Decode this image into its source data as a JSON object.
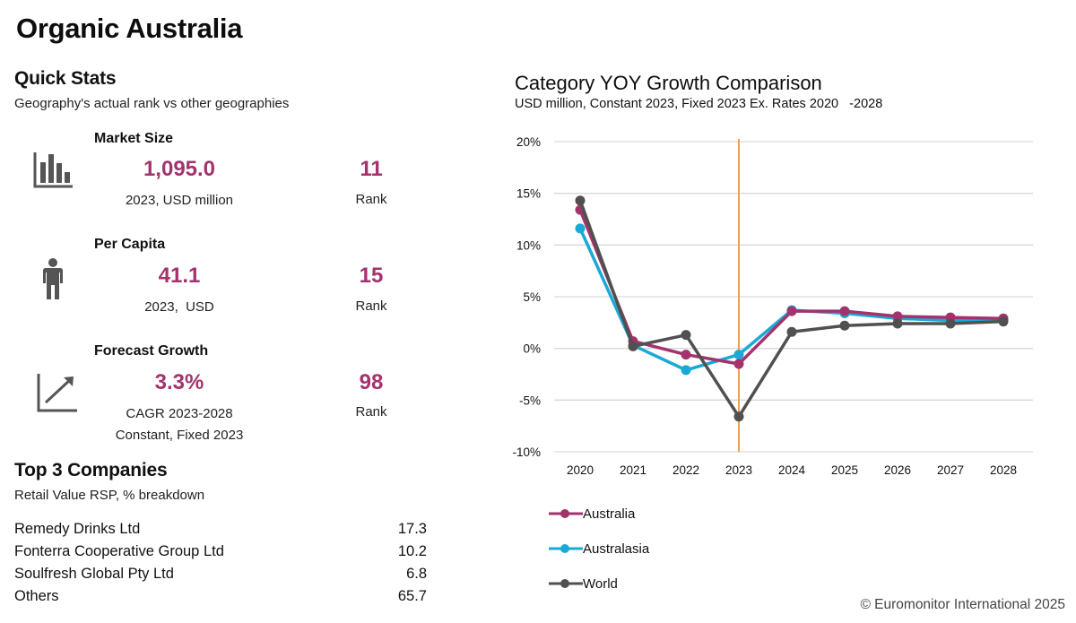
{
  "page": {
    "title": "Organic Australia",
    "copyright": "© Euromonitor International 2025"
  },
  "quick_stats": {
    "title": "Quick Stats",
    "subtitle": "Geography's actual rank vs other geographies",
    "items": [
      {
        "label": "Market Size",
        "icon": "bar-chart-icon",
        "value": "1,095.0",
        "note": "2023, USD million",
        "note2": "",
        "rank": "11",
        "rank_label": "Rank"
      },
      {
        "label": "Per Capita",
        "icon": "person-icon",
        "value": "41.1",
        "note": "2023,  USD",
        "note2": "",
        "rank": "15",
        "rank_label": "Rank"
      },
      {
        "label": "Forecast Growth",
        "icon": "growth-arrow-icon",
        "value": "3.3%",
        "note": "CAGR 2023-2028",
        "note2": "Constant, Fixed 2023",
        "rank": "98",
        "rank_label": "Rank"
      }
    ]
  },
  "top_companies": {
    "title": "Top 3 Companies",
    "subtitle": "Retail Value RSP, % breakdown",
    "rows": [
      {
        "name": "Remedy Drinks Ltd",
        "value": "17.3"
      },
      {
        "name": "Fonterra Cooperative Group Ltd",
        "value": "10.2"
      },
      {
        "name": "Soulfresh Global Pty Ltd",
        "value": "6.8"
      },
      {
        "name": "Others",
        "value": "65.7"
      }
    ]
  },
  "colors": {
    "accent": "#a3336d",
    "australia": "#a3336d",
    "australasia": "#1aa9d6",
    "world": "#505050",
    "marker_line": "#f0a050",
    "grid": "#d9d9d9",
    "icon": "#555555"
  },
  "chart_data": {
    "type": "line",
    "title": "Category YOY Growth Comparison",
    "subtitle": "USD million, Constant 2023, Fixed 2023 Ex. Rates 2020   -2028",
    "xlabel": "",
    "ylabel": "",
    "x": [
      "2020",
      "2021",
      "2022",
      "2023",
      "2024",
      "2025",
      "2026",
      "2027",
      "2028"
    ],
    "ylim": [
      -10,
      20
    ],
    "yticks": [
      20,
      15,
      10,
      5,
      0,
      -5,
      -10
    ],
    "ytick_labels": [
      "20%",
      "15%",
      "10%",
      "5%",
      "0%",
      "-5%",
      "-10%"
    ],
    "grid": true,
    "legend_position": "bottom-left",
    "vertical_marker": {
      "x": "2023"
    },
    "series": [
      {
        "name": "Australia",
        "color": "#a3336d",
        "values": [
          13.4,
          0.7,
          -0.6,
          -1.5,
          3.6,
          3.6,
          3.1,
          3.0,
          2.9
        ]
      },
      {
        "name": "Australasia",
        "color": "#1aa9d6",
        "values": [
          11.6,
          0.3,
          -2.1,
          -0.6,
          3.7,
          3.4,
          2.9,
          2.7,
          2.7
        ]
      },
      {
        "name": "World",
        "color": "#505050",
        "values": [
          14.3,
          0.2,
          1.3,
          -6.6,
          1.6,
          2.2,
          2.4,
          2.4,
          2.6
        ]
      }
    ]
  }
}
